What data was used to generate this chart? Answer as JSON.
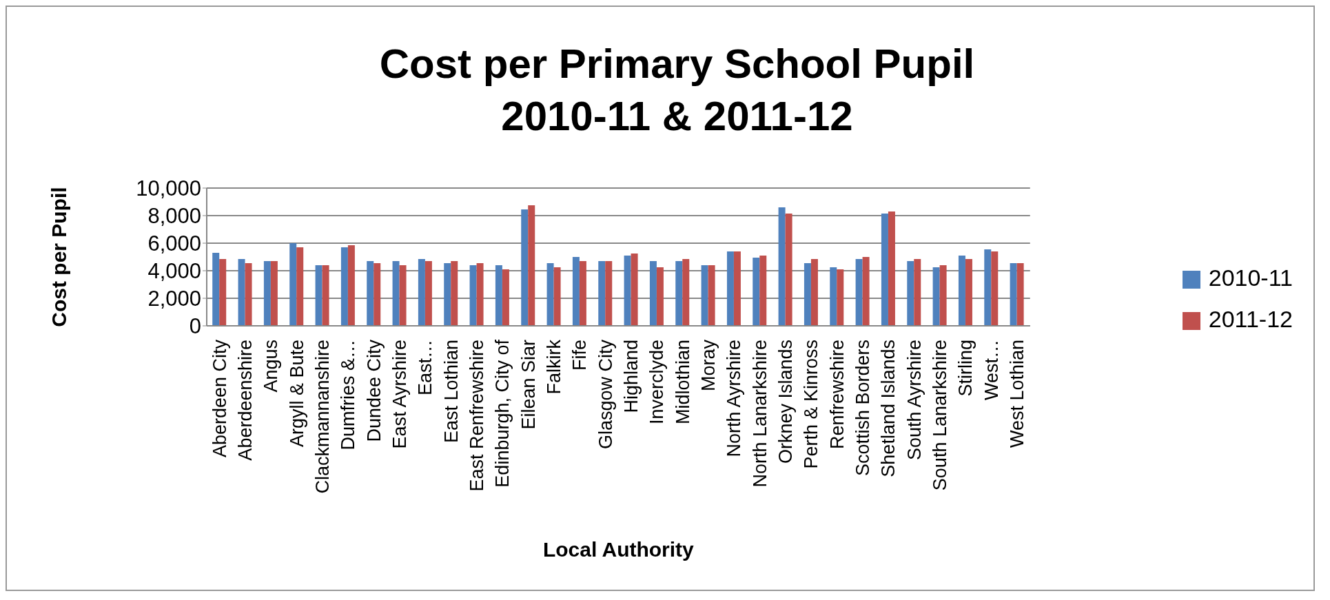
{
  "chart_data": {
    "type": "bar",
    "title": "Cost per Primary School Pupil\n2010-11 & 2011-12",
    "xlabel": "Local Authority",
    "ylabel": "Cost per Pupil",
    "categories": [
      "Aberdeen City",
      "Aberdeenshire",
      "Angus",
      "Argyll & Bute",
      "Clackmannanshire",
      "Dumfries &…",
      "Dundee City",
      "East Ayrshire",
      "East…",
      "East Lothian",
      "East Renfrewshire",
      "Edinburgh, City of",
      "Eilean Siar",
      "Falkirk",
      "Fife",
      "Glasgow City",
      "Highland",
      "Inverclyde",
      "Midlothian",
      "Moray",
      "North Ayrshire",
      "North Lanarkshire",
      "Orkney Islands",
      "Perth & Kinross",
      "Renfrewshire",
      "Scottish Borders",
      "Shetland Islands",
      "South Ayrshire",
      "South Lanarkshire",
      "Stirling",
      "West…",
      "West Lothian"
    ],
    "series": [
      {
        "name": "2010-11",
        "color": "#4f81bd",
        "values": [
          5300,
          4850,
          4700,
          6000,
          4400,
          5700,
          4700,
          4700,
          4850,
          4550,
          4400,
          4400,
          8450,
          4550,
          5000,
          4700,
          5100,
          4700,
          4700,
          4400,
          5400,
          4950,
          8600,
          4550,
          4250,
          4850,
          8150,
          4700,
          4250,
          5100,
          5550,
          4550
        ]
      },
      {
        "name": "2011-12",
        "color": "#c0504d",
        "values": [
          4850,
          4550,
          4700,
          5700,
          4400,
          5850,
          4550,
          4400,
          4700,
          4700,
          4550,
          4100,
          8750,
          4250,
          4700,
          4700,
          5250,
          4250,
          4850,
          4400,
          5400,
          5100,
          8150,
          4850,
          4100,
          5000,
          8300,
          4850,
          4400,
          4850,
          5400,
          4550
        ]
      }
    ],
    "ylim": [
      0,
      10000
    ],
    "yticks": [
      0,
      {
        "value": 2000,
        "label": "2,000"
      },
      {
        "value": 4000,
        "label": "4,000"
      },
      {
        "value": 6000,
        "label": "6,000"
      },
      {
        "value": 8000,
        "label": "8,000"
      },
      {
        "value": 10000,
        "label": "10,000"
      }
    ],
    "grid": "y",
    "legend": "right"
  }
}
